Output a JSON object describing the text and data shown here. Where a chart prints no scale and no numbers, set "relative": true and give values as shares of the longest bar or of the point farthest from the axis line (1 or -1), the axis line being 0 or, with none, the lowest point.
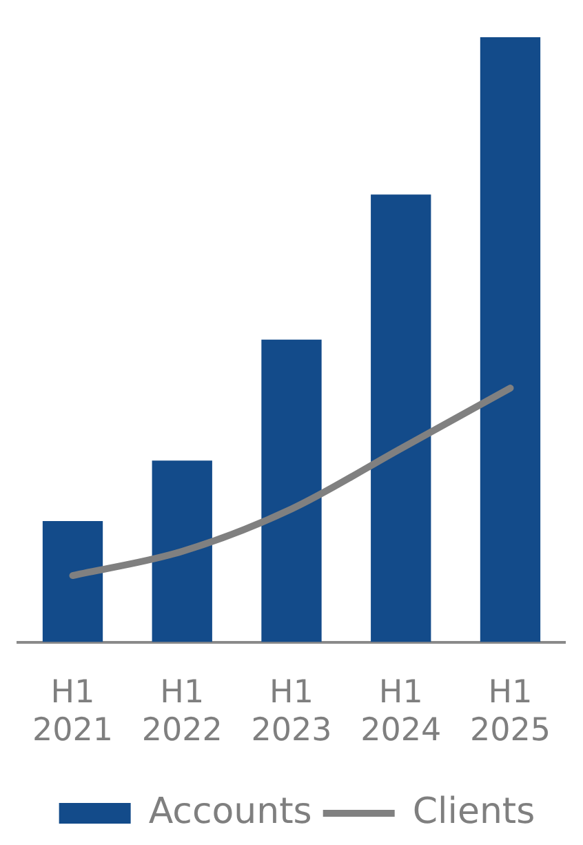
{
  "chart_data": {
    "type": "bar",
    "relative": true,
    "categories": [
      "H1 2021",
      "H1 2022",
      "H1 2023",
      "H1 2024",
      "H1 2025"
    ],
    "series": [
      {
        "name": "Accounts",
        "color": "#134b8a",
        "values": [
          0.2,
          0.3,
          0.5,
          0.74,
          1
        ]
      },
      {
        "name": "Clients",
        "type": "line",
        "color": "#808080",
        "values": [
          0.11,
          0.15,
          0.22,
          0.32,
          0.42
        ]
      }
    ],
    "legend": "bottom",
    "grid": false
  }
}
